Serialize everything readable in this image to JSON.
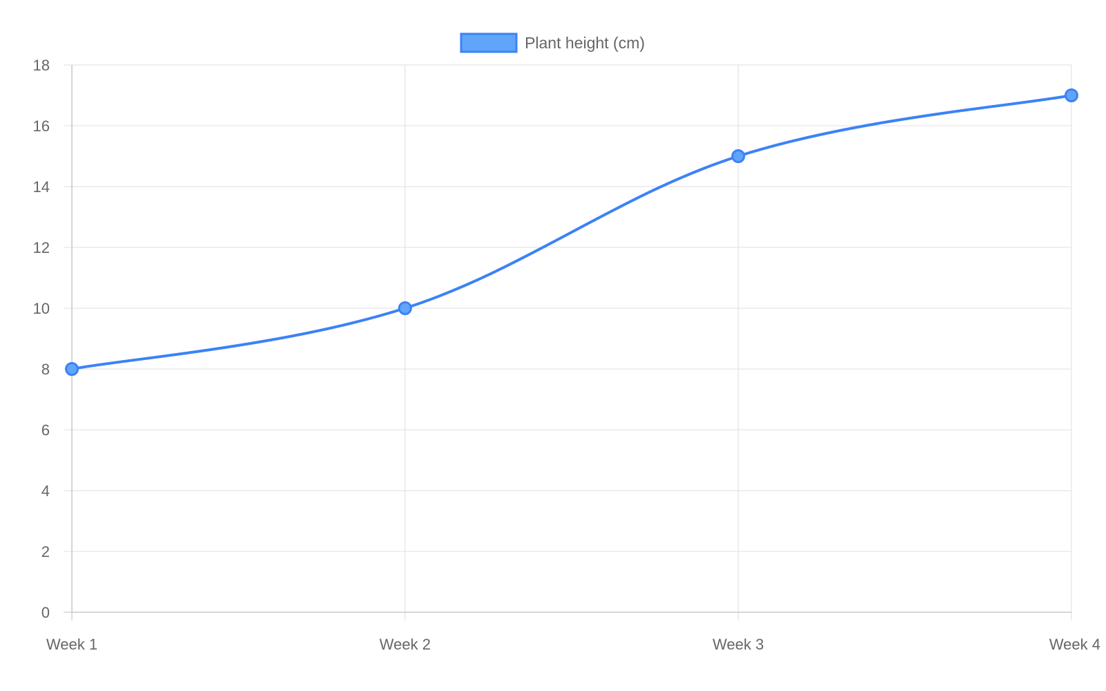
{
  "chart_data": {
    "type": "line",
    "categories": [
      "Week 1",
      "Week 2",
      "Week 3",
      "Week 4"
    ],
    "series": [
      {
        "name": "Plant height (cm)",
        "values": [
          8,
          10,
          15,
          17
        ],
        "color": "#3b82f6",
        "fill_color": "#60a5fa"
      }
    ],
    "ylim": [
      0,
      18
    ],
    "ytick_step": 2,
    "legend_position": "top-center",
    "grid": true,
    "smooth": true,
    "gridline_color": "#e5e5e5",
    "axis_color": "#cccccc",
    "label_color": "#666666"
  }
}
